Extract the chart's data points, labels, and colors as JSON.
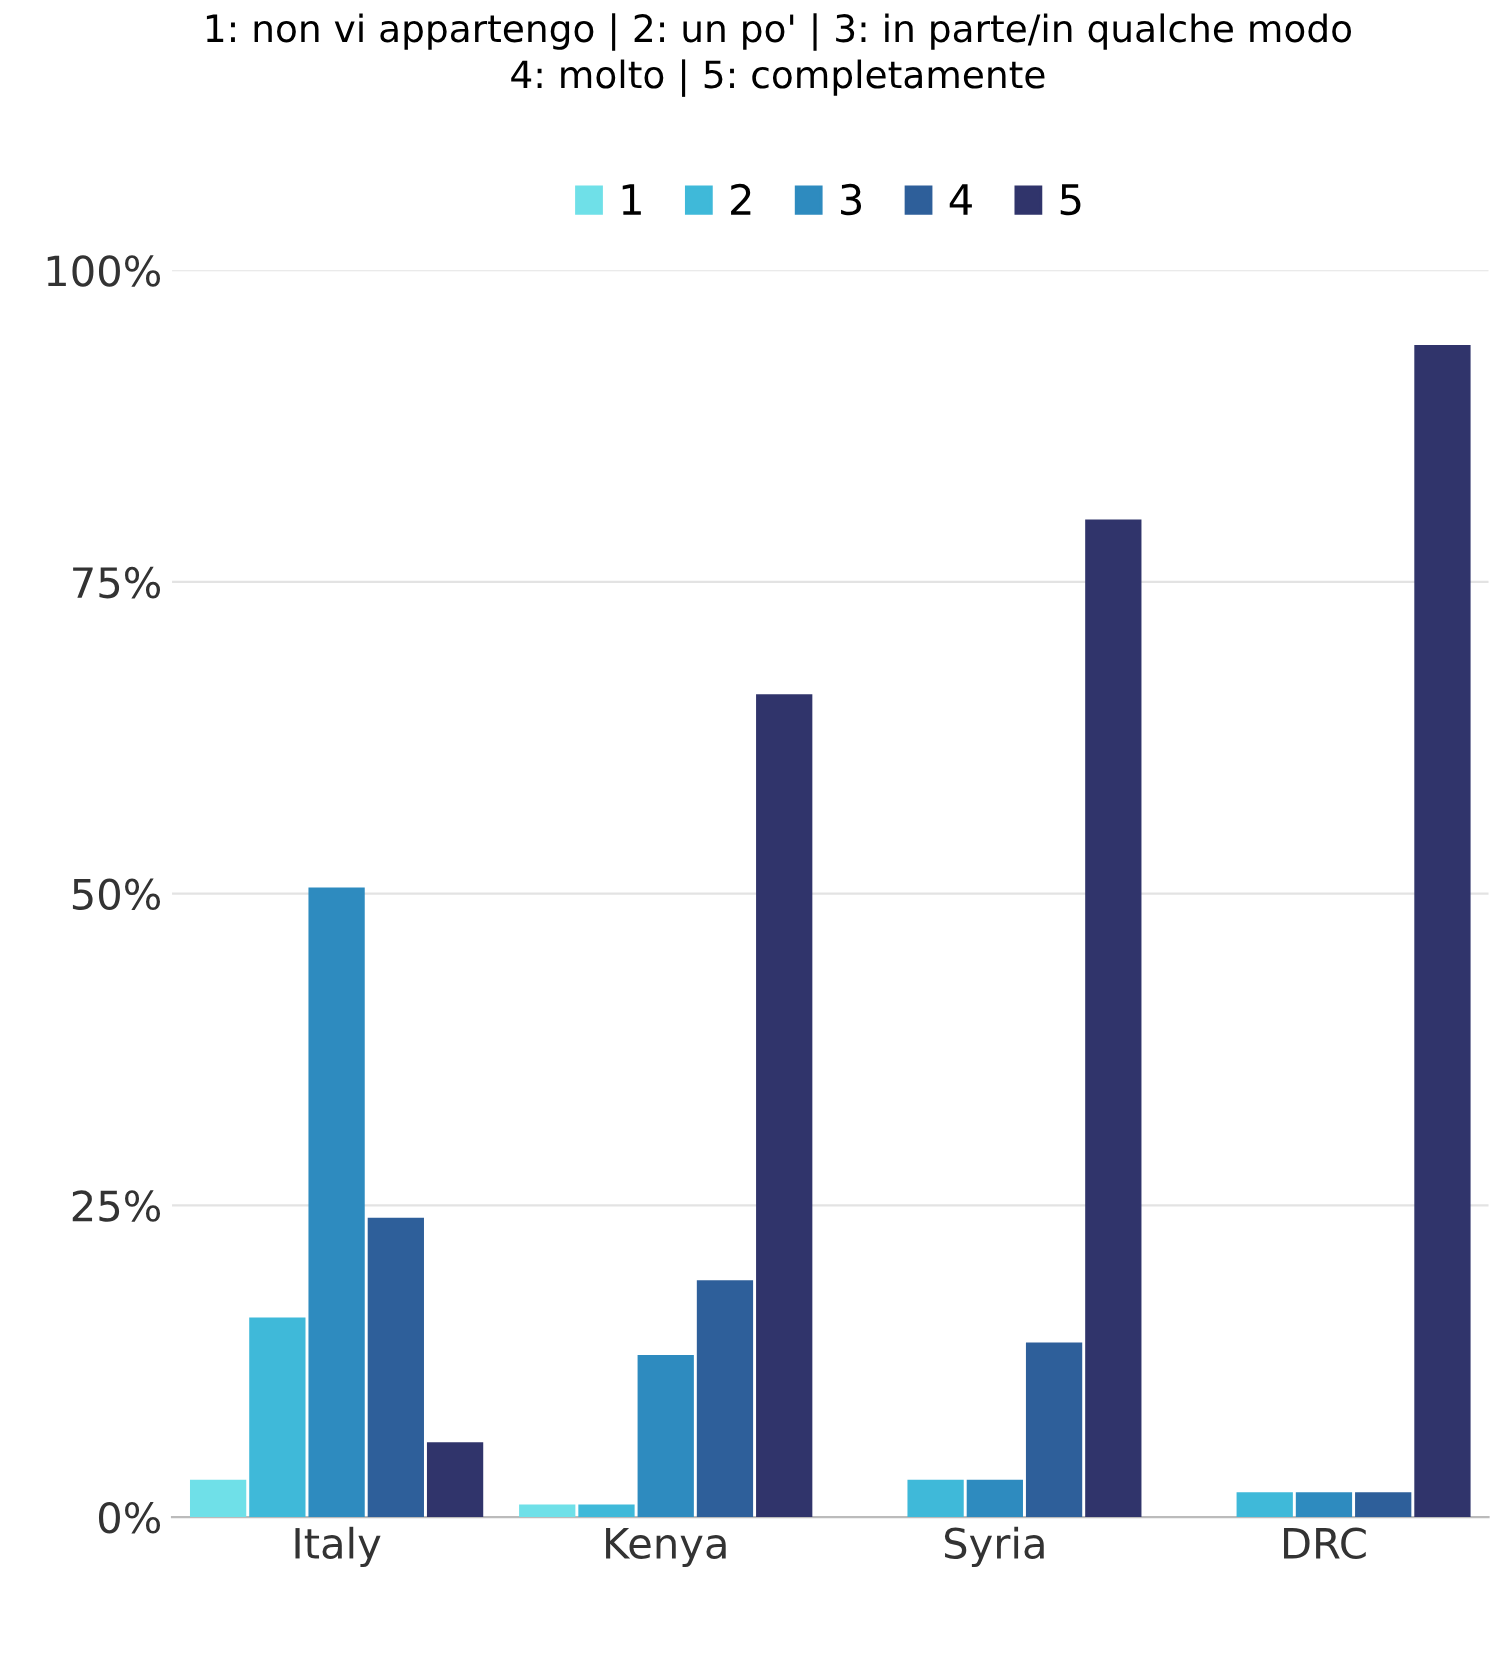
{
  "chart_data": {
    "type": "bar",
    "title": "1: non vi appartengo | 2: un po' | 3: in parte/in qualche modo\n4: molto | 5: completamente",
    "categories": [
      "Italy",
      "Kenya",
      "Syria",
      "DRC"
    ],
    "series": [
      {
        "name": "1",
        "color": "#6fe0e8",
        "values": [
          3,
          1,
          0,
          0
        ]
      },
      {
        "name": "2",
        "color": "#3fb9d9",
        "values": [
          16,
          1,
          3,
          2
        ]
      },
      {
        "name": "3",
        "color": "#2e8bbf",
        "values": [
          50.5,
          13,
          3,
          2
        ]
      },
      {
        "name": "4",
        "color": "#2e5f9a",
        "values": [
          24,
          19,
          14,
          2
        ]
      },
      {
        "name": "5",
        "color": "#30346b",
        "values": [
          6,
          66,
          80,
          94
        ]
      }
    ],
    "ylim": [
      0,
      100
    ],
    "yticks": [
      {
        "value": 0,
        "label": "0%"
      },
      {
        "value": 25,
        "label": "25%"
      },
      {
        "value": 50,
        "label": "50%"
      },
      {
        "value": 75,
        "label": "75%"
      },
      {
        "value": 100,
        "label": "100%"
      }
    ],
    "grid": "y",
    "legend": "top"
  }
}
